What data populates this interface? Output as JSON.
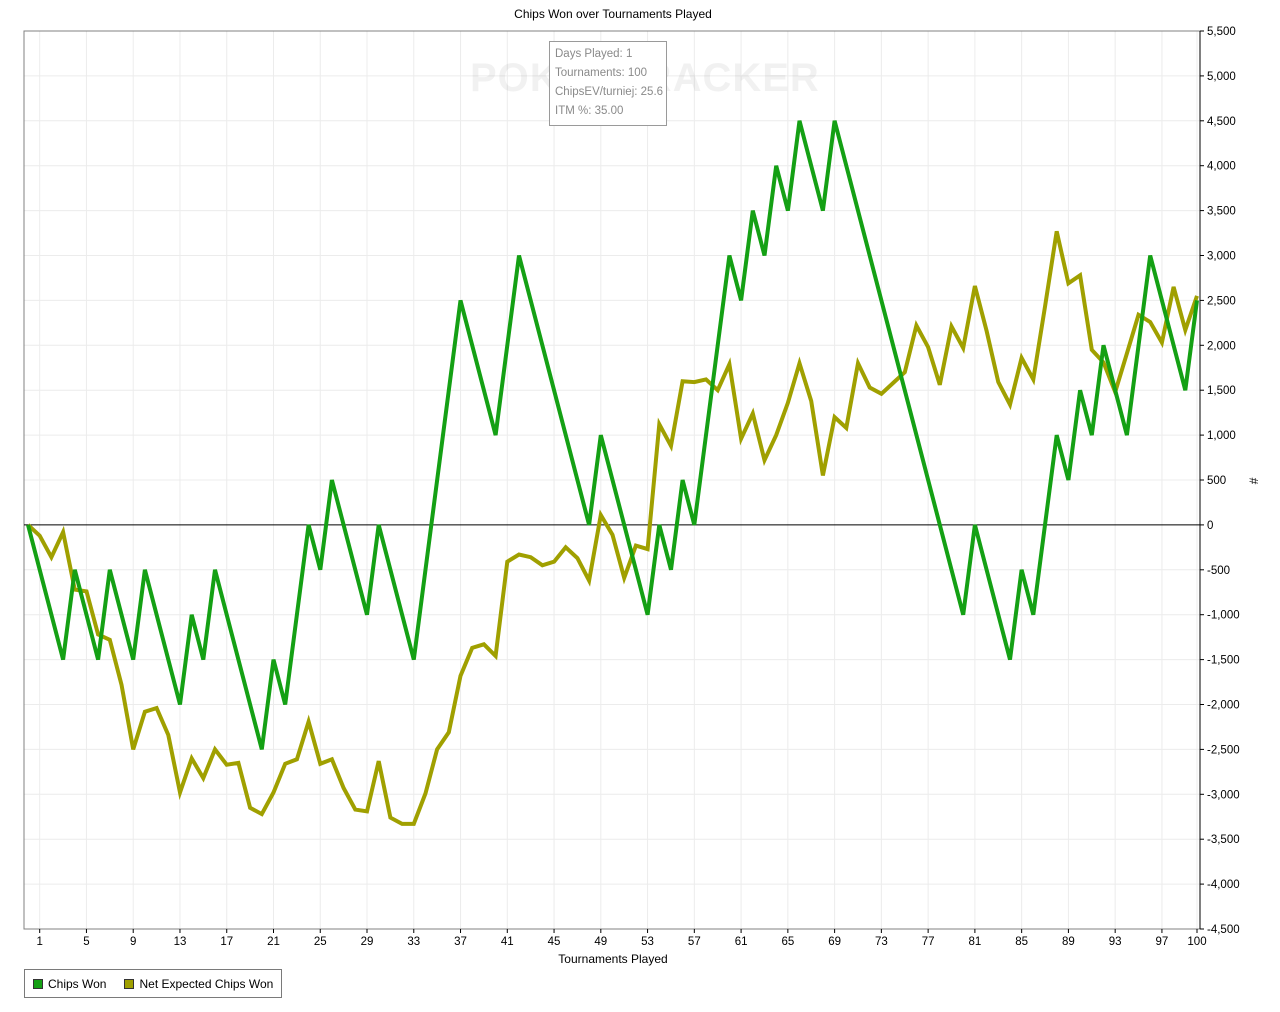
{
  "chart_data": {
    "type": "line",
    "title": "Chips Won over Tournaments Played",
    "xlabel": "Tournaments Played",
    "ylabel": "#",
    "xlim": [
      0,
      100
    ],
    "ylim": [
      -4500,
      5500
    ],
    "x_ticks": [
      1,
      5,
      9,
      13,
      17,
      21,
      25,
      29,
      33,
      37,
      41,
      45,
      49,
      53,
      57,
      61,
      65,
      69,
      73,
      77,
      81,
      85,
      89,
      93,
      97,
      100
    ],
    "y_ticks": [
      5500,
      5000,
      4500,
      4000,
      3500,
      3000,
      2500,
      2000,
      1500,
      1000,
      500,
      0,
      -500,
      -1000,
      -1500,
      -2000,
      -2500,
      -3000,
      -3500,
      -4000,
      -4500
    ],
    "y_tick_labels": [
      "5,500",
      "5,000",
      "4,500",
      "4,000",
      "3,500",
      "3,000",
      "2,500",
      "2,000",
      "1,500",
      "1,000",
      "500",
      "0",
      "-500",
      "-1,000",
      "-1,500",
      "-2,000",
      "-2,500",
      "-3,000",
      "-3,500",
      "-4,000",
      "-4,500"
    ],
    "grid": true,
    "legend_position": "bottom-left",
    "series": [
      {
        "name": "Chips Won",
        "color": "#14a014",
        "x": [
          0,
          3,
          4,
          6,
          7,
          9,
          10,
          13,
          14,
          15,
          16,
          20,
          21,
          22,
          24,
          25,
          26,
          29,
          30,
          33,
          37,
          40,
          42,
          48,
          49,
          53,
          54,
          55,
          56,
          57,
          60,
          61,
          62,
          63,
          64,
          65,
          66,
          67,
          68,
          69,
          80,
          81,
          84,
          85,
          86,
          88,
          89,
          90,
          91,
          92,
          94,
          96,
          99,
          100
        ],
        "values": [
          0,
          -1500,
          -500,
          -1500,
          -500,
          -1500,
          -500,
          -2000,
          -1000,
          -1500,
          -500,
          -2500,
          -1500,
          -2000,
          0,
          -500,
          500,
          -1000,
          0,
          -1500,
          2500,
          1000,
          3000,
          0,
          1000,
          -1000,
          0,
          -500,
          500,
          0,
          3000,
          2500,
          3500,
          3000,
          4000,
          3500,
          4500,
          4000,
          3500,
          4500,
          -1000,
          0,
          -1500,
          -500,
          -1000,
          1000,
          500,
          1500,
          1000,
          2000,
          1000,
          3000,
          1500,
          2500
        ]
      },
      {
        "name": "Net Expected Chips Won",
        "color": "#a0a000",
        "x": [
          0,
          1,
          2,
          3,
          4,
          5,
          6,
          7,
          8,
          9,
          10,
          11,
          12,
          13,
          14,
          15,
          16,
          17,
          18,
          19,
          20,
          21,
          22,
          23,
          24,
          25,
          26,
          27,
          28,
          29,
          30,
          31,
          32,
          33,
          34,
          35,
          36,
          37,
          38,
          39,
          40,
          41,
          42,
          43,
          44,
          45,
          46,
          47,
          48,
          49,
          50,
          51,
          52,
          53,
          54,
          55,
          56,
          57,
          58,
          59,
          60,
          61,
          62,
          63,
          64,
          65,
          66,
          67,
          68,
          69,
          70,
          71,
          72,
          73,
          74,
          75,
          76,
          77,
          78,
          79,
          80,
          81,
          82,
          83,
          84,
          85,
          86,
          87,
          88,
          89,
          90,
          91,
          92,
          93,
          94,
          95,
          96,
          97,
          98,
          99,
          100
        ],
        "values": [
          0,
          -120,
          -360,
          -80,
          -720,
          -740,
          -1220,
          -1280,
          -1780,
          -2500,
          -2080,
          -2040,
          -2340,
          -2980,
          -2600,
          -2820,
          -2500,
          -2670,
          -2650,
          -3150,
          -3220,
          -2980,
          -2660,
          -2610,
          -2190,
          -2660,
          -2610,
          -2930,
          -3170,
          -3190,
          -2630,
          -3260,
          -3330,
          -3330,
          -2990,
          -2500,
          -2310,
          -1680,
          -1370,
          -1330,
          -1460,
          -410,
          -330,
          -360,
          -450,
          -410,
          -250,
          -370,
          -620,
          110,
          -110,
          -590,
          -230,
          -270,
          1120,
          880,
          1600,
          1590,
          1620,
          1500,
          1790,
          960,
          1240,
          720,
          1000,
          1360,
          1800,
          1380,
          550,
          1200,
          1080,
          1800,
          1530,
          1460,
          1580,
          1700,
          2220,
          1980,
          1560,
          2210,
          1970,
          2660,
          2160,
          1590,
          1340,
          1860,
          1620,
          2430,
          3270,
          2690,
          2780,
          1950,
          1810,
          1480,
          1910,
          2340,
          2260,
          2030,
          2650,
          2170,
          2550
        ]
      }
    ],
    "tooltip": [
      "Days Played: 1",
      "Tournaments: 100",
      "ChipsEV/turniej: 25.6",
      "ITM %: 35.00"
    ],
    "watermark": "POKERTRACKER"
  }
}
